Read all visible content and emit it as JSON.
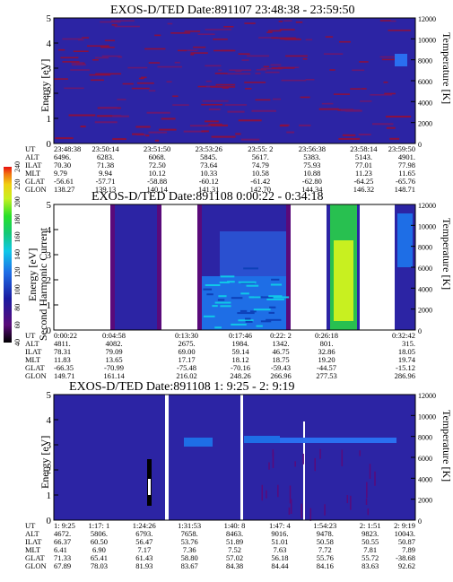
{
  "colorbar": {
    "label": "Second Harmonic Current",
    "ticks": [
      "40",
      "60",
      "80",
      "100",
      "120",
      "140",
      "160",
      "180",
      "200",
      "220",
      "240"
    ]
  },
  "ephem_labels": [
    "UT",
    "ALT",
    "ILAT",
    "MLT",
    "GLAT",
    "GLON"
  ],
  "chart_data": [
    {
      "type": "heatmap",
      "title": "EXOS-D/TED  Date:891107  23:48:38 - 23:59:50",
      "ylabel": "Energy [eV]",
      "y2label": "Temperature [K]",
      "ylim": [
        0,
        5
      ],
      "y2lim": [
        0,
        12000
      ],
      "yticks": [
        "0",
        "1",
        "2",
        "3",
        "4",
        "5"
      ],
      "y2ticks": [
        "0",
        "2000",
        "4000",
        "6000",
        "8000",
        "10000",
        "12000"
      ],
      "ephemeris": {
        "UT": [
          "23:48:38",
          "23:50:14",
          "23:51:50",
          "23:53:26",
          "23:55: 2",
          "23:56:38",
          "23:58:14",
          "23:59:50"
        ],
        "ALT": [
          "6496.",
          "6283.",
          "6068.",
          "5845.",
          "5617.",
          "5383.",
          "5143.",
          "4901."
        ],
        "ILAT": [
          "70.30",
          "71.38",
          "72.50",
          "73.64",
          "74.79",
          "75.93",
          "77.01",
          "77.98"
        ],
        "MLT": [
          "9.79",
          "9.94",
          "10.12",
          "10.33",
          "10.58",
          "10.88",
          "11.23",
          "11.65"
        ],
        "GLAT": [
          "-56.61",
          "-57.71",
          "-58.88",
          "-60.12",
          "-61.42",
          "-62.80",
          "-64.25",
          "-65.76"
        ],
        "GLON": [
          "138.27",
          "139.13",
          "140.14",
          "141.31",
          "142.70",
          "144.34",
          "146.32",
          "148.71"
        ]
      }
    },
    {
      "type": "heatmap",
      "title": "EXOS-D/TED   Date:891108  0:00:22 - 0:34:18",
      "ylabel": "Energy [eV]",
      "y2label": "Temperature [K]",
      "ylim": [
        0,
        5
      ],
      "y2lim": [
        0,
        12000
      ],
      "yticks": [
        "0",
        "1",
        "2",
        "3",
        "4",
        "5"
      ],
      "y2ticks": [
        "0",
        "2000",
        "4000",
        "6000",
        "8000",
        "10000",
        "12000"
      ],
      "ephemeris": {
        "UT": [
          "0:00:22",
          "0:04:58",
          "",
          "0:13:30",
          "0:17:46",
          "0:22: 2",
          "0:26:18",
          "0:32:42"
        ],
        "ALT": [
          "4811.",
          "4082.",
          "",
          "2675.",
          "1984.",
          "1342.",
          "801.",
          "315."
        ],
        "ILAT": [
          "78.31",
          "79.09",
          "",
          "69.00",
          "59.14",
          "46.75",
          "32.86",
          "18.05"
        ],
        "MLT": [
          "11.83",
          "13.65",
          "",
          "17.17",
          "18.12",
          "18.75",
          "19.20",
          "19.74"
        ],
        "GLAT": [
          "-66.35",
          "-70.99",
          "",
          "-75.48",
          "-70.16",
          "-59.43",
          "-44.57",
          "-15.12"
        ],
        "GLON": [
          "149.71",
          "161.14",
          "",
          "216.02",
          "248.26",
          "266.96",
          "277.53",
          "286.96"
        ]
      }
    },
    {
      "type": "heatmap",
      "title": "EXOS-D/TED  Date:891108  1: 9:25 - 2: 9:19",
      "ylabel": "Energy [eV]",
      "y2label": "Temperature [K]",
      "ylim": [
        0,
        5
      ],
      "y2lim": [
        0,
        12000
      ],
      "yticks": [
        "0",
        "1",
        "2",
        "3",
        "4",
        "5"
      ],
      "y2ticks": [
        "0",
        "2000",
        "4000",
        "6000",
        "8000",
        "10000",
        "12000"
      ],
      "ephemeris": {
        "UT": [
          "1: 9:25",
          "1:17: 1",
          "1:24:26",
          "1:31:53",
          "1:40: 8",
          "1:47: 4",
          "1:54:23",
          "2: 1:51",
          "2: 9:19"
        ],
        "ALT": [
          "4672.",
          "5806.",
          "6793.",
          "7658.",
          "8463.",
          "9016.",
          "9478.",
          "9823.",
          "10043."
        ],
        "ILAT": [
          "66.37",
          "60.50",
          "56.47",
          "53.76",
          "51.89",
          "51.01",
          "50.58",
          "50.55",
          "50.87"
        ],
        "MLT": [
          "6.41",
          "6.90",
          "7.17",
          "7.36",
          "7.52",
          "7.63",
          "7.72",
          "7.81",
          "7.89"
        ],
        "GLAT": [
          "71.33",
          "65.41",
          "61.43",
          "58.80",
          "57.02",
          "56.18",
          "55.76",
          "55.72",
          "-38.68"
        ],
        "GLON": [
          "67.89",
          "78.03",
          "81.93",
          "83.67",
          "84.38",
          "84.44",
          "84.16",
          "83.63",
          "92.62"
        ]
      }
    }
  ]
}
